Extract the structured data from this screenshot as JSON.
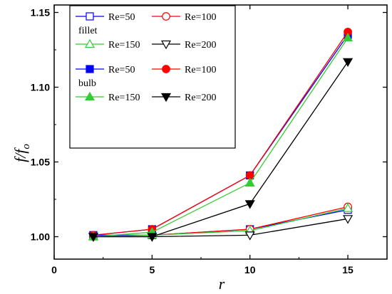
{
  "chart_data": {
    "type": "line",
    "title": "",
    "xlabel": "r",
    "ylabel_main": "f/f",
    "ylabel_sub": "o",
    "xlim": [
      0,
      17
    ],
    "ylim": [
      0.985,
      1.155
    ],
    "xticks": [
      0,
      5,
      10,
      15
    ],
    "xtick_labels": [
      "0",
      "5",
      "10",
      "15"
    ],
    "yticks": [
      1.0,
      1.05,
      1.1,
      1.15
    ],
    "ytick_labels": [
      "1.00",
      "1.05",
      "1.10",
      "1.15"
    ],
    "grid": false,
    "legend_position": "top-left",
    "legend_groups": [
      {
        "title": "fillet",
        "series_indices": [
          0,
          1,
          2,
          3
        ]
      },
      {
        "title": "bulb",
        "series_indices": [
          4,
          5,
          6,
          7
        ]
      }
    ],
    "x": [
      2,
      5,
      10,
      15
    ],
    "series": [
      {
        "name": "Re=50",
        "group": "fillet",
        "marker": "square",
        "filled": false,
        "color": "#0000ff",
        "values": [
          1.001,
          1.001,
          1.005,
          1.018
        ]
      },
      {
        "name": "Re=100",
        "group": "fillet",
        "marker": "circle",
        "filled": false,
        "color": "#ff0000",
        "values": [
          1.0,
          1.001,
          1.005,
          1.02
        ]
      },
      {
        "name": "Re=150",
        "group": "fillet",
        "marker": "triangle-up",
        "filled": false,
        "color": "#33cc33",
        "values": [
          1.0,
          1.001,
          1.004,
          1.019
        ]
      },
      {
        "name": "Re=200",
        "group": "fillet",
        "marker": "triangle-down",
        "filled": false,
        "color": "#000000",
        "values": [
          1.0,
          1.0,
          1.001,
          1.012
        ]
      },
      {
        "name": "Re=50",
        "group": "bulb",
        "marker": "square",
        "filled": true,
        "color": "#0000ff",
        "values": [
          1.001,
          1.005,
          1.041,
          1.135
        ]
      },
      {
        "name": "Re=100",
        "group": "bulb",
        "marker": "circle",
        "filled": true,
        "color": "#ff0000",
        "values": [
          1.001,
          1.005,
          1.041,
          1.137
        ]
      },
      {
        "name": "Re=150",
        "group": "bulb",
        "marker": "triangle-up",
        "filled": true,
        "color": "#33cc33",
        "values": [
          1.0,
          1.003,
          1.036,
          1.133
        ]
      },
      {
        "name": "Re=200",
        "group": "bulb",
        "marker": "triangle-down",
        "filled": true,
        "color": "#000000",
        "values": [
          1.0,
          1.0,
          1.022,
          1.117
        ]
      }
    ]
  }
}
